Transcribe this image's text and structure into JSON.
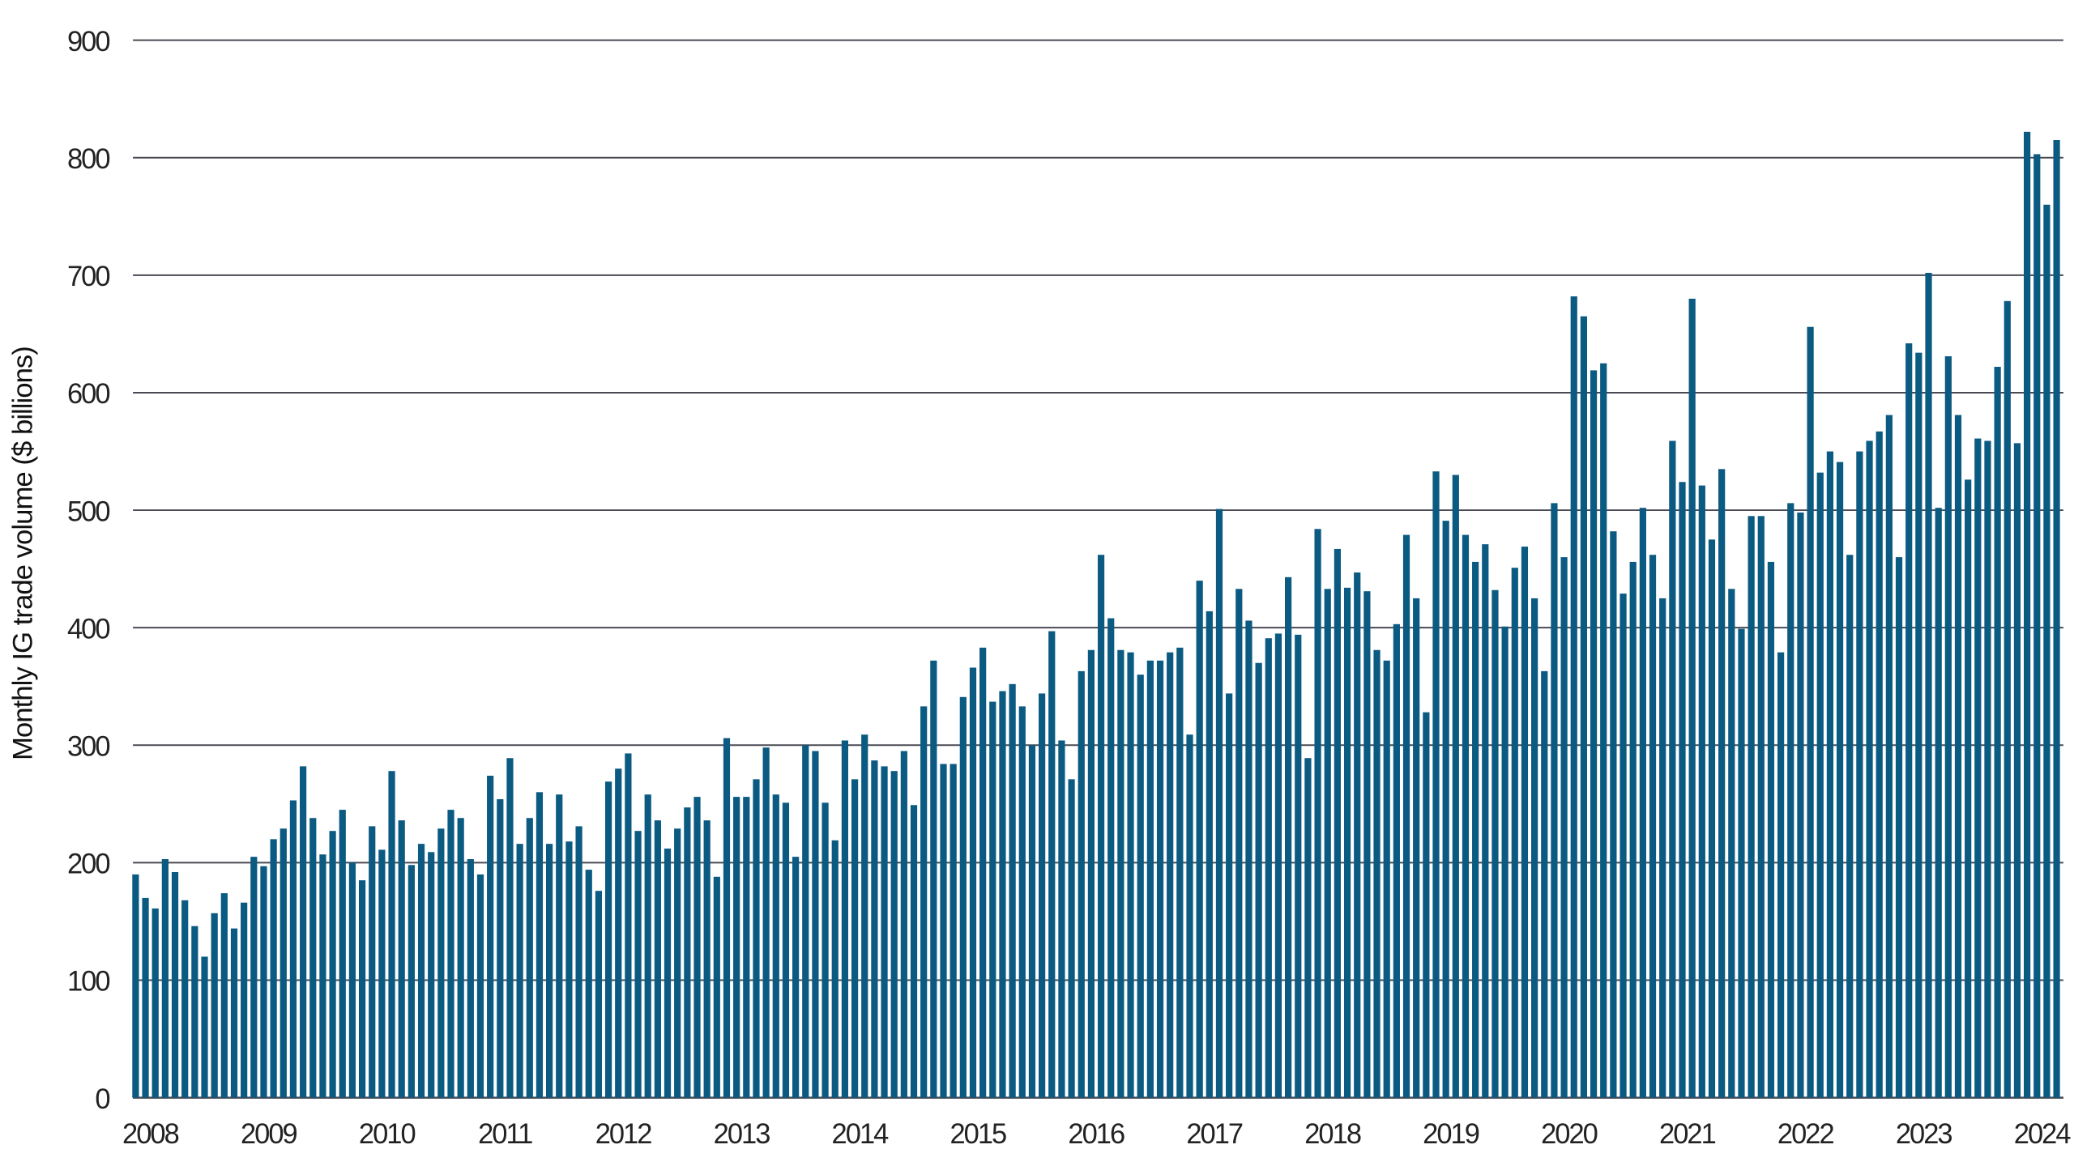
{
  "chart_data": {
    "type": "bar",
    "title": "",
    "xlabel": "",
    "ylabel": "Monthly IG trade volume ($ billions)",
    "ylim": [
      0,
      900
    ],
    "yticks": [
      0,
      100,
      200,
      300,
      400,
      500,
      600,
      700,
      800,
      900
    ],
    "xtick_labels": [
      "2008",
      "2009",
      "2010",
      "2011",
      "2012",
      "2013",
      "2014",
      "2015",
      "2016",
      "2017",
      "2018",
      "2019",
      "2020",
      "2021",
      "2022",
      "2023",
      "2024"
    ],
    "x_start": "2008-01",
    "x_end": "2024-04",
    "frequency": "monthly",
    "grid": "horizontal",
    "bar_color": "#0b5a82",
    "grid_color": "#4a4a55",
    "values": [
      190,
      170,
      161,
      203,
      192,
      168,
      146,
      120,
      157,
      174,
      144,
      166,
      205,
      197,
      220,
      229,
      253,
      282,
      238,
      207,
      227,
      245,
      200,
      185,
      231,
      211,
      278,
      236,
      198,
      216,
      209,
      229,
      245,
      238,
      203,
      190,
      274,
      254,
      289,
      216,
      238,
      260,
      216,
      258,
      218,
      231,
      194,
      176,
      269,
      280,
      293,
      227,
      258,
      236,
      212,
      229,
      247,
      256,
      236,
      188,
      306,
      256,
      256,
      271,
      298,
      258,
      251,
      205,
      300,
      295,
      251,
      219,
      304,
      271,
      309,
      287,
      282,
      278,
      295,
      249,
      333,
      372,
      284,
      284,
      341,
      366,
      383,
      337,
      346,
      352,
      333,
      300,
      344,
      397,
      304,
      271,
      363,
      381,
      462,
      408,
      381,
      379,
      360,
      372,
      372,
      379,
      383,
      309,
      440,
      414,
      501,
      344,
      433,
      406,
      370,
      391,
      395,
      443,
      394,
      289,
      484,
      433,
      467,
      434,
      447,
      431,
      381,
      372,
      403,
      479,
      425,
      328,
      533,
      491,
      530,
      479,
      456,
      471,
      432,
      401,
      451,
      469,
      425,
      363,
      506,
      460,
      682,
      665,
      619,
      625,
      482,
      429,
      456,
      502,
      462,
      425,
      559,
      524,
      680,
      521,
      475,
      535,
      433,
      399,
      495,
      495,
      456,
      379,
      506,
      498,
      656,
      532,
      550,
      541,
      462,
      550,
      559,
      567,
      581,
      460,
      642,
      634,
      702,
      502,
      631,
      581,
      526,
      561,
      559,
      622,
      678,
      557,
      822,
      803,
      760,
      815
    ]
  }
}
